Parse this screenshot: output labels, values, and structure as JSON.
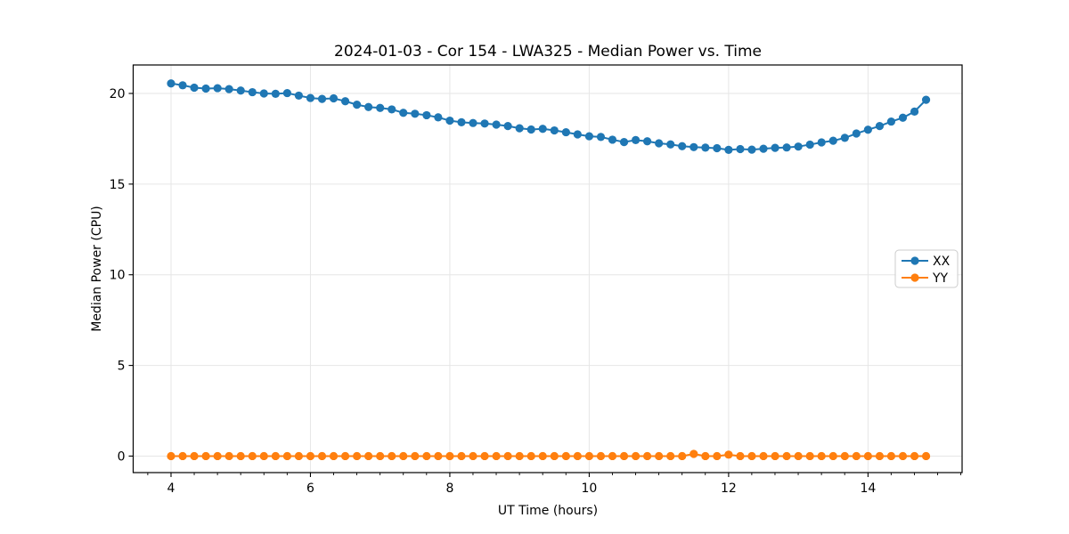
{
  "chart_data": {
    "type": "line",
    "title": "2024-01-03 - Cor 154 - LWA325 - Median Power vs. Time",
    "xlabel": "UT Time (hours)",
    "ylabel": "Median Power (CPU)",
    "xlim": [
      3.457,
      15.35
    ],
    "ylim": [
      -0.91,
      21.57
    ],
    "xticks": [
      4,
      6,
      8,
      10,
      12,
      14
    ],
    "yticks": [
      0,
      5,
      10,
      15,
      20
    ],
    "minor_tick_step_x": 0.3333,
    "grid": true,
    "legend_position": "center right",
    "x": [
      4,
      4.167,
      4.333,
      4.5,
      4.667,
      4.833,
      5,
      5.167,
      5.333,
      5.5,
      5.667,
      5.833,
      6,
      6.167,
      6.333,
      6.5,
      6.667,
      6.833,
      7,
      7.167,
      7.333,
      7.5,
      7.667,
      7.833,
      8,
      8.167,
      8.333,
      8.5,
      8.667,
      8.833,
      9,
      9.167,
      9.333,
      9.5,
      9.667,
      9.833,
      10,
      10.167,
      10.333,
      10.5,
      10.667,
      10.833,
      11,
      11.167,
      11.333,
      11.5,
      11.667,
      11.833,
      12,
      12.167,
      12.333,
      12.5,
      12.667,
      12.833,
      13,
      13.167,
      13.333,
      13.5,
      13.667,
      13.833,
      14,
      14.167,
      14.333,
      14.5,
      14.667,
      14.833
    ],
    "series": [
      {
        "name": "XX",
        "color": "#1f77b4",
        "values": [
          20.55,
          20.45,
          20.32,
          20.27,
          20.29,
          20.24,
          20.16,
          20.07,
          20.0,
          19.98,
          20.02,
          19.88,
          19.75,
          19.7,
          19.73,
          19.57,
          19.38,
          19.25,
          19.2,
          19.12,
          18.93,
          18.88,
          18.8,
          18.68,
          18.5,
          18.41,
          18.37,
          18.34,
          18.28,
          18.2,
          18.08,
          18.01,
          18.05,
          17.96,
          17.86,
          17.74,
          17.64,
          17.6,
          17.45,
          17.32,
          17.43,
          17.36,
          17.25,
          17.19,
          17.09,
          17.04,
          17.01,
          16.98,
          16.89,
          16.93,
          16.9,
          16.95,
          17.0,
          17.02,
          17.07,
          17.18,
          17.3,
          17.39,
          17.55,
          17.79,
          18.0,
          18.2,
          18.45,
          18.66,
          19.0,
          19.65
        ]
      },
      {
        "name": "YY",
        "color": "#ff7f0e",
        "values": [
          0,
          0,
          0,
          0,
          0,
          0,
          0,
          0,
          0,
          0,
          0,
          0,
          0,
          0,
          0,
          0,
          0,
          0,
          0,
          0,
          0,
          0,
          0,
          0,
          0,
          0,
          0,
          0,
          0,
          0,
          0,
          0,
          0,
          0,
          0,
          0,
          0,
          0,
          0,
          0,
          0,
          0,
          0,
          0,
          0,
          0.12,
          0,
          0,
          0.08,
          0,
          0,
          0,
          0,
          0,
          0,
          0,
          0,
          0,
          0,
          0,
          0,
          0,
          0,
          0,
          0,
          0
        ]
      }
    ]
  }
}
